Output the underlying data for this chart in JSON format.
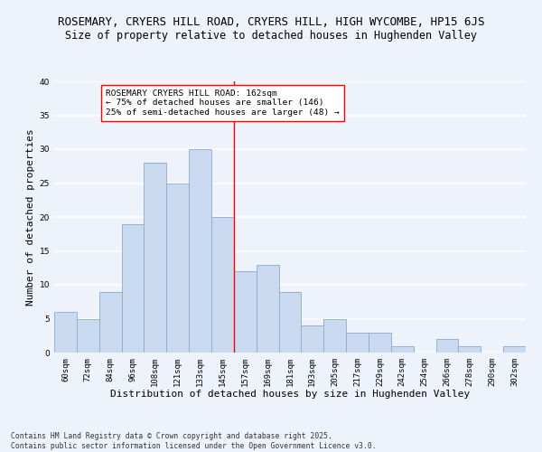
{
  "title_line1": "ROSEMARY, CRYERS HILL ROAD, CRYERS HILL, HIGH WYCOMBE, HP15 6JS",
  "title_line2": "Size of property relative to detached houses in Hughenden Valley",
  "xlabel": "Distribution of detached houses by size in Hughenden Valley",
  "ylabel": "Number of detached properties",
  "categories": [
    "60sqm",
    "72sqm",
    "84sqm",
    "96sqm",
    "108sqm",
    "121sqm",
    "133sqm",
    "145sqm",
    "157sqm",
    "169sqm",
    "181sqm",
    "193sqm",
    "205sqm",
    "217sqm",
    "229sqm",
    "242sqm",
    "254sqm",
    "266sqm",
    "278sqm",
    "290sqm",
    "302sqm"
  ],
  "values": [
    6,
    5,
    9,
    19,
    28,
    25,
    30,
    20,
    12,
    13,
    9,
    4,
    5,
    3,
    3,
    1,
    0,
    2,
    1,
    0,
    1
  ],
  "bar_color": "#c9d9f0",
  "bar_edge_color": "#8aabce",
  "background_color": "#eef2fb",
  "grid_color": "#ffffff",
  "vline_x": 7.5,
  "vline_color": "red",
  "annotation_text": "ROSEMARY CRYERS HILL ROAD: 162sqm\n← 75% of detached houses are smaller (146)\n25% of semi-detached houses are larger (48) →",
  "annotation_box_color": "white",
  "annotation_box_edge_color": "red",
  "ylim": [
    0,
    40
  ],
  "yticks": [
    0,
    5,
    10,
    15,
    20,
    25,
    30,
    35,
    40
  ],
  "footnote": "Contains HM Land Registry data © Crown copyright and database right 2025.\nContains public sector information licensed under the Open Government Licence v3.0.",
  "title_fontsize": 9,
  "subtitle_fontsize": 8.5,
  "xlabel_fontsize": 8,
  "ylabel_fontsize": 8,
  "tick_fontsize": 6.5,
  "annotation_fontsize": 6.8,
  "footnote_fontsize": 5.8
}
